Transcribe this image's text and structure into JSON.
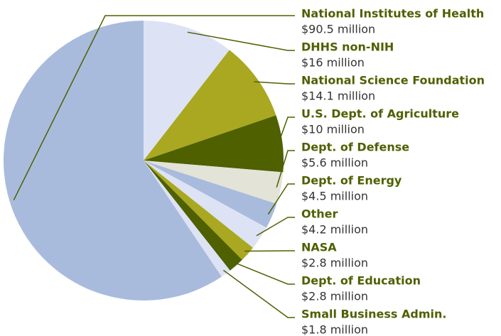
{
  "chart_data": {
    "type": "pie",
    "categories": [
      "National Institutes of Health",
      "DHHS non-NIH",
      "National Science Foundation",
      "U.S. Dept. of Agriculture",
      "Dept. of Defense",
      "Dept. of Energy",
      "Other",
      "NASA",
      "Dept. of Education",
      "Small Business Admin."
    ],
    "values": [
      90.5,
      16,
      14.1,
      10,
      5.6,
      4.5,
      4.2,
      2.8,
      2.8,
      1.8
    ],
    "value_labels": [
      "$90.5 million",
      "$16 million",
      "$14.1 million",
      "$10 million",
      "$5.6 million",
      "$4.5 million",
      "$4.2 million",
      "$2.8 million",
      "$2.8 million",
      "$1.8 million"
    ],
    "colors": [
      "#a9bbdc",
      "#dde3f4",
      "#a9a820",
      "#4e6000",
      "#e3e3d8",
      "#a9bbdc",
      "#dde3f4",
      "#a9a820",
      "#4e6000",
      "#dde3f4"
    ]
  }
}
